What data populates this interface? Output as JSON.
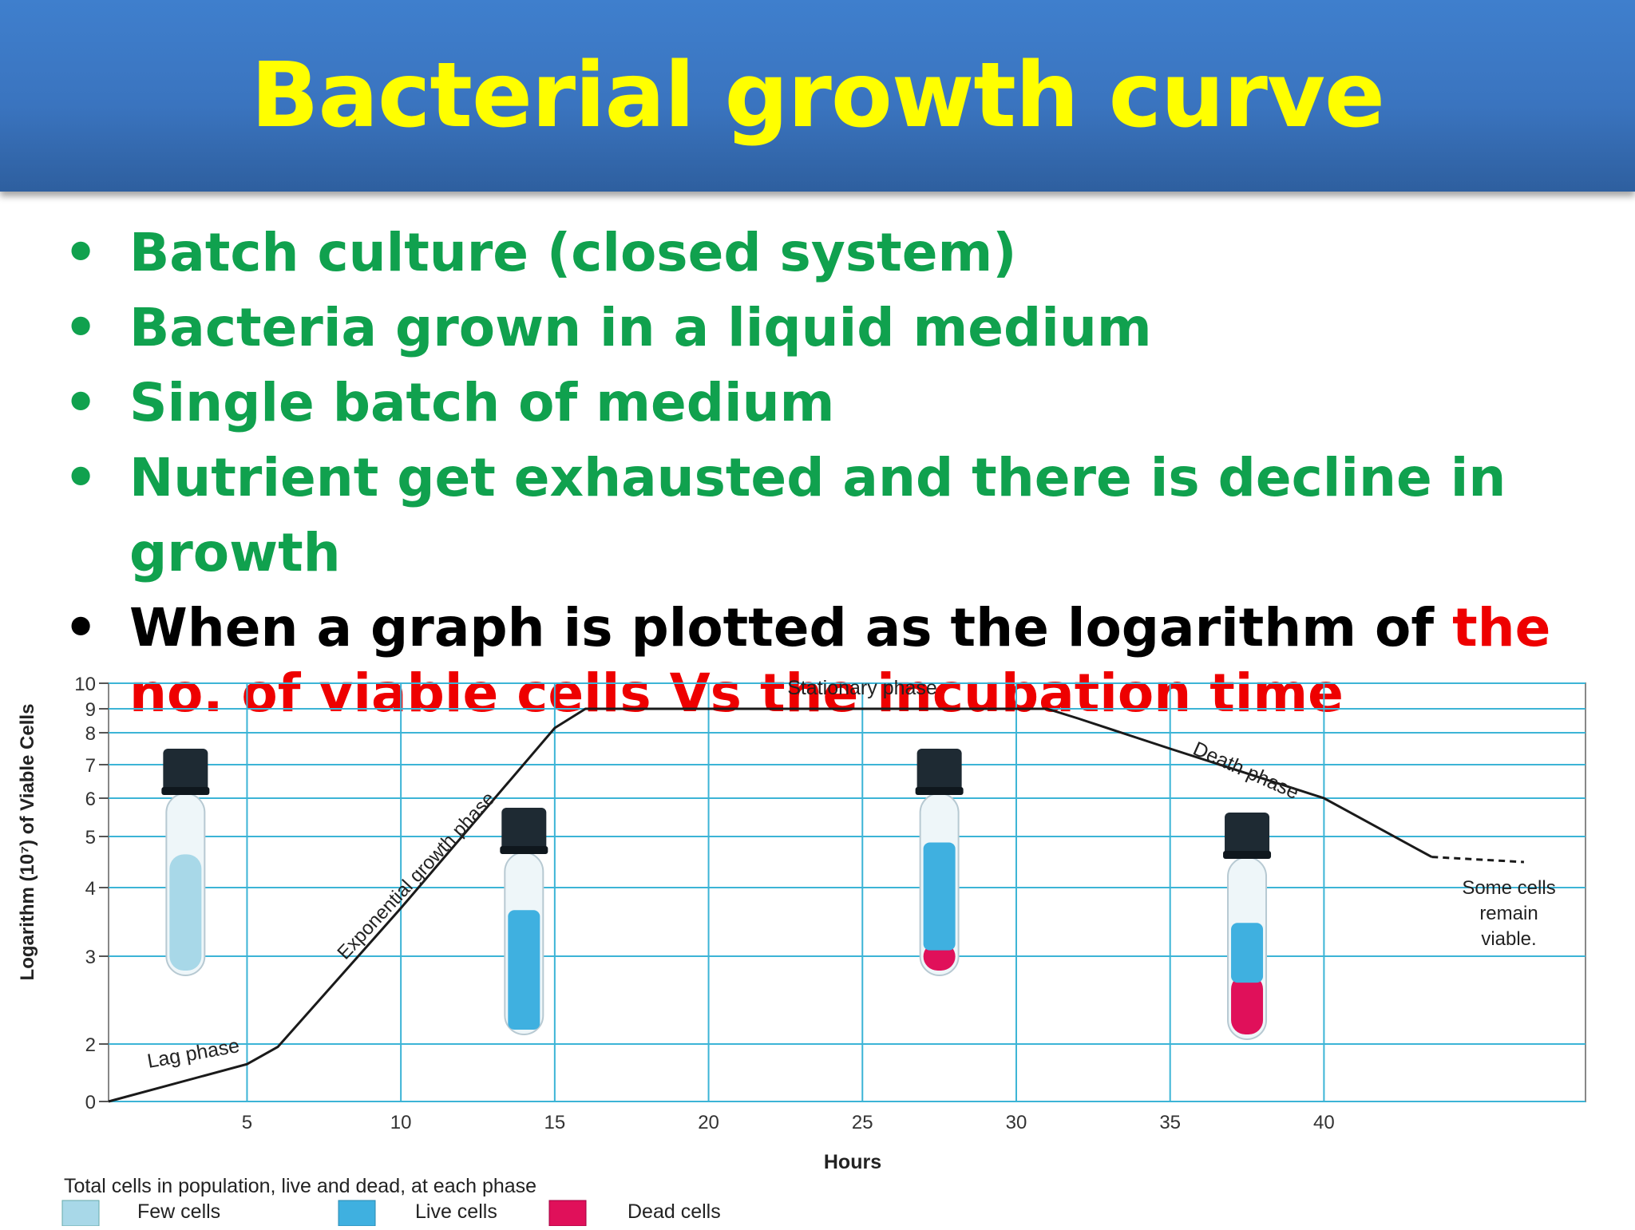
{
  "title": "Bacterial growth curve",
  "bullets": [
    {
      "text": "Batch culture (closed system)"
    },
    {
      "text": "Bacteria grown in a liquid medium"
    },
    {
      "text": "Single batch of medium"
    },
    {
      "text": "Nutrient get exhausted and there is decline in growth"
    },
    {
      "text_black": "When a graph is plotted as the logarithm of ",
      "text_red": "the no. of viable cells Vs the incubation time"
    }
  ],
  "colors": {
    "title": "#ffff00",
    "bullet_green": "#10a14e",
    "bullet_red": "#ee0000",
    "grid": "#3cb4d6",
    "few_cells": "#a8d8e8",
    "live_cells": "#3fb0e0",
    "dead_cells": "#e0105a",
    "cap": "#1e2a33"
  },
  "chart_data": {
    "type": "line",
    "xlabel": "Hours",
    "ylabel": "Logarithm (10⁷) of Viable Cells",
    "x_ticks": [
      5,
      10,
      15,
      20,
      25,
      30,
      35,
      40
    ],
    "y_ticks": [
      0,
      2,
      3,
      4,
      5,
      6,
      7,
      8,
      9,
      10
    ],
    "xlim": [
      0.5,
      48.5
    ],
    "grid": true,
    "series": [
      {
        "x": [
          0.5,
          5,
          6,
          10,
          15,
          16,
          25,
          31,
          32,
          35,
          40,
          43.5
        ],
        "y": [
          0,
          1.3,
          1.9,
          3.7,
          8.2,
          9,
          9,
          9,
          8.6,
          7.5,
          6,
          4.6
        ],
        "extension": {
          "x": [
            43.5,
            46.5
          ],
          "y": [
            4.6,
            4.5
          ],
          "style": "dashed"
        }
      }
    ],
    "annotations": {
      "lag": "Lag phase",
      "exponential": "Exponential growth phase",
      "stationary": "Stationary phase",
      "death": "Death phase",
      "remain": [
        "Some cells",
        "remain",
        "viable."
      ]
    },
    "tubes": [
      {
        "x": 3,
        "live_fraction": 0,
        "dead_fraction": 0,
        "few_fraction": 0.7
      },
      {
        "x": 14,
        "live_fraction": 0.72,
        "dead_fraction": 0,
        "few_fraction": 0
      },
      {
        "x": 27.5,
        "live_fraction": 0.65,
        "dead_fraction": 0.17,
        "few_fraction": 0
      },
      {
        "x": 37.5,
        "live_fraction": 0.36,
        "dead_fraction": 0.36,
        "few_fraction": 0
      }
    ],
    "legend": {
      "caption": "Total cells in population, live and dead, at each phase",
      "items": [
        "Few cells",
        "Live cells",
        "Dead cells"
      ]
    }
  }
}
